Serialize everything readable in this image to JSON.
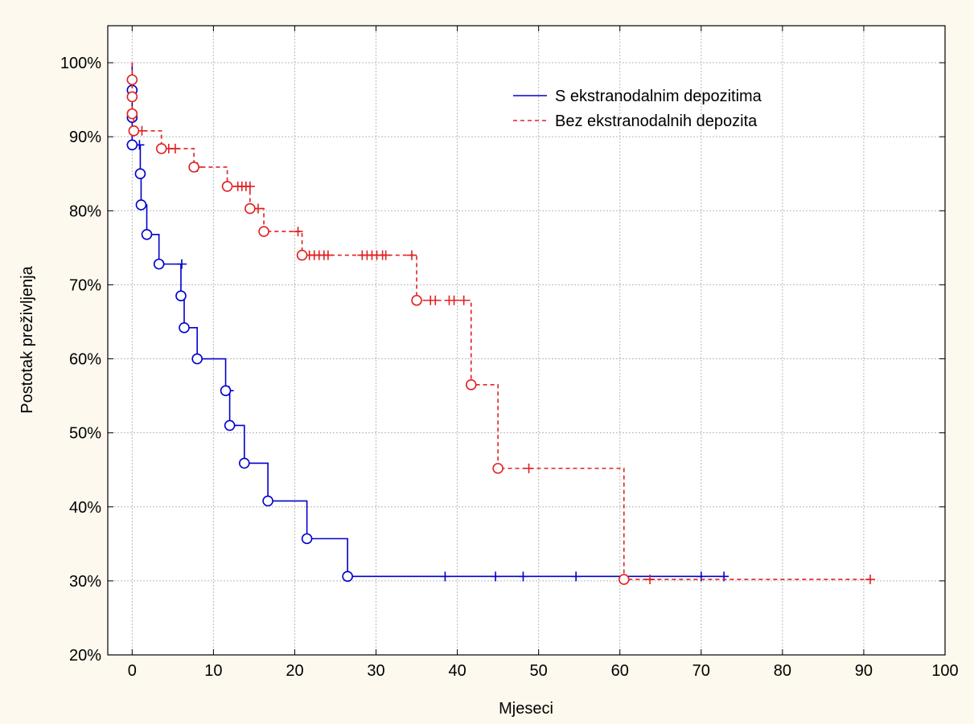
{
  "background_color": "#fdf9ee",
  "chart_data": {
    "type": "line",
    "title": "",
    "xlabel": "Mjeseci",
    "ylabel": "Postotak preživljenja",
    "xlim": [
      -3,
      100
    ],
    "ylim": [
      20,
      105
    ],
    "x_ticks": [
      0,
      10,
      20,
      30,
      40,
      50,
      60,
      70,
      80,
      90,
      100
    ],
    "x_tick_labels": [
      "0",
      "10",
      "20",
      "30",
      "40",
      "50",
      "60",
      "70",
      "80",
      "90",
      "100"
    ],
    "y_ticks": [
      20,
      30,
      40,
      50,
      60,
      70,
      80,
      90,
      100
    ],
    "y_tick_labels": [
      "20%",
      "30%",
      "40%",
      "50%",
      "60%",
      "70%",
      "80%",
      "90%",
      "100%"
    ],
    "grid": true,
    "legend_position": "top-right",
    "series": [
      {
        "name": "S ekstranodalnim depozitima",
        "color": "#0000cc",
        "line_style": "solid",
        "steps": [
          [
            0,
            100
          ],
          [
            0,
            96.3
          ],
          [
            0,
            92.6
          ],
          [
            0,
            88.9
          ],
          [
            1.0,
            85.0
          ],
          [
            1.1,
            80.8
          ],
          [
            1.8,
            76.8
          ],
          [
            3.3,
            72.8
          ],
          [
            6.0,
            68.5
          ],
          [
            6.4,
            64.2
          ],
          [
            8.0,
            60.0
          ],
          [
            11.5,
            55.7
          ],
          [
            12.0,
            51.0
          ],
          [
            13.8,
            45.9
          ],
          [
            16.7,
            40.8
          ],
          [
            21.5,
            35.7
          ],
          [
            26.5,
            30.6
          ],
          [
            72.8,
            30.6
          ]
        ],
        "events": [
          [
            0,
            96.3
          ],
          [
            0,
            92.6
          ],
          [
            0,
            88.9
          ],
          [
            1.0,
            85.0
          ],
          [
            1.1,
            80.8
          ],
          [
            1.8,
            76.8
          ],
          [
            3.3,
            72.8
          ],
          [
            6.0,
            68.5
          ],
          [
            6.4,
            64.2
          ],
          [
            8.0,
            60.0
          ],
          [
            11.5,
            55.7
          ],
          [
            12.0,
            51.0
          ],
          [
            13.8,
            45.9
          ],
          [
            16.7,
            40.8
          ],
          [
            21.5,
            35.7
          ],
          [
            26.5,
            30.6
          ]
        ],
        "censored": [
          [
            0.9,
            88.9
          ],
          [
            6.1,
            72.8
          ],
          [
            11.9,
            55.7
          ],
          [
            12.3,
            51.0
          ],
          [
            38.5,
            30.6
          ],
          [
            44.7,
            30.6
          ],
          [
            48.1,
            30.6
          ],
          [
            54.6,
            30.6
          ],
          [
            70.0,
            30.6
          ],
          [
            72.8,
            30.6
          ]
        ]
      },
      {
        "name": "Bez ekstranodalnih depozita",
        "color": "#e02020",
        "line_style": "dashed",
        "steps": [
          [
            0,
            100
          ],
          [
            0,
            97.7
          ],
          [
            0,
            95.4
          ],
          [
            0,
            93.1
          ],
          [
            0.2,
            90.8
          ],
          [
            3.6,
            88.4
          ],
          [
            7.6,
            85.9
          ],
          [
            11.7,
            83.3
          ],
          [
            14.5,
            80.3
          ],
          [
            16.2,
            77.2
          ],
          [
            20.9,
            74.0
          ],
          [
            35.0,
            67.9
          ],
          [
            41.7,
            56.5
          ],
          [
            45.0,
            45.2
          ],
          [
            60.5,
            30.2
          ],
          [
            90.8,
            30.2
          ]
        ],
        "events": [
          [
            0,
            97.7
          ],
          [
            0,
            95.4
          ],
          [
            0,
            93.1
          ],
          [
            0.2,
            90.8
          ],
          [
            3.6,
            88.4
          ],
          [
            7.6,
            85.9
          ],
          [
            11.7,
            83.3
          ],
          [
            14.5,
            80.3
          ],
          [
            16.2,
            77.2
          ],
          [
            20.9,
            74.0
          ],
          [
            35.0,
            67.9
          ],
          [
            41.7,
            56.5
          ],
          [
            45.0,
            45.2
          ],
          [
            60.5,
            30.2
          ]
        ],
        "censored": [
          [
            1.2,
            90.8
          ],
          [
            4.5,
            88.4
          ],
          [
            5.3,
            88.4
          ],
          [
            8.0,
            85.9
          ],
          [
            13.0,
            83.3
          ],
          [
            13.5,
            83.3
          ],
          [
            14.0,
            83.3
          ],
          [
            14.5,
            83.3
          ],
          [
            15.5,
            80.3
          ],
          [
            20.4,
            77.2
          ],
          [
            21.8,
            74.0
          ],
          [
            22.4,
            74.0
          ],
          [
            23.0,
            74.0
          ],
          [
            23.6,
            74.0
          ],
          [
            24.1,
            74.0
          ],
          [
            28.3,
            74.0
          ],
          [
            28.9,
            74.0
          ],
          [
            29.5,
            74.0
          ],
          [
            30.1,
            74.0
          ],
          [
            30.8,
            74.0
          ],
          [
            31.2,
            74.0
          ],
          [
            34.4,
            74.0
          ],
          [
            36.7,
            67.9
          ],
          [
            37.3,
            67.9
          ],
          [
            39.0,
            67.9
          ],
          [
            39.6,
            67.9
          ],
          [
            40.8,
            67.9
          ],
          [
            48.8,
            45.2
          ],
          [
            63.7,
            30.2
          ],
          [
            90.8,
            30.2
          ]
        ]
      }
    ]
  }
}
